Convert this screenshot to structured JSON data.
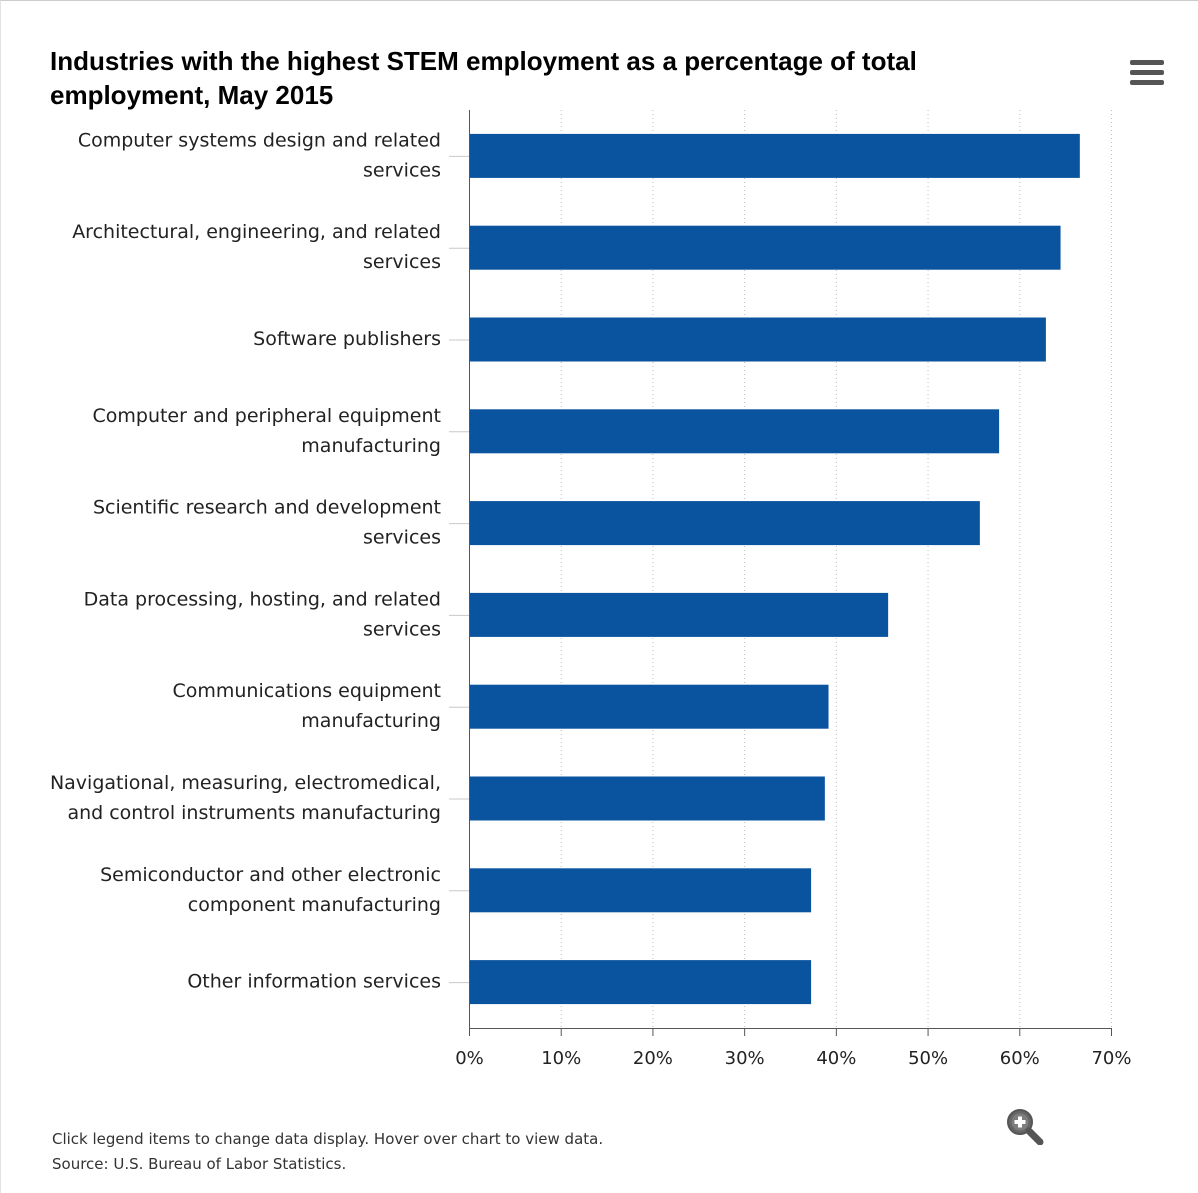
{
  "chart": {
    "title": "Industries with the highest STEM employment as a percentage of total employment, May 2015",
    "menu_icon": "hamburger-menu-icon",
    "zoom_icon": "zoom-in-icon",
    "note": "Click legend items to change data display. Hover over chart to view data.",
    "source": "Source: U.S. Bureau of Labor Statistics."
  },
  "colors": {
    "bar": "#0a539f",
    "axis": "#555555",
    "grid": "#bdbdbd"
  },
  "chart_data": {
    "type": "bar",
    "orientation": "horizontal",
    "title": "Industries with the highest STEM employment as a percentage of total employment, May 2015",
    "categories": [
      [
        "Computer systems design and related",
        "services"
      ],
      [
        "Architectural, engineering, and related",
        "services"
      ],
      [
        "Software publishers"
      ],
      [
        "Computer and peripheral equipment",
        "manufacturing"
      ],
      [
        "Scientific research and development",
        "services"
      ],
      [
        "Data processing, hosting, and related",
        "services"
      ],
      [
        "Communications equipment",
        "manufacturing"
      ],
      [
        "Navigational, measuring, electromedical,",
        "and control instruments manufacturing"
      ],
      [
        "Semiconductor and other electronic",
        "component manufacturing"
      ],
      [
        "Other information services"
      ]
    ],
    "values": [
      66.6,
      64.5,
      62.9,
      57.8,
      55.7,
      45.7,
      39.2,
      38.8,
      37.3,
      37.3
    ],
    "xlim": [
      0,
      70
    ],
    "xticks": [
      0,
      10,
      20,
      30,
      40,
      50,
      60,
      70
    ],
    "tick_suffix": "%",
    "grid": "vertical-dotted",
    "legend": "none"
  }
}
